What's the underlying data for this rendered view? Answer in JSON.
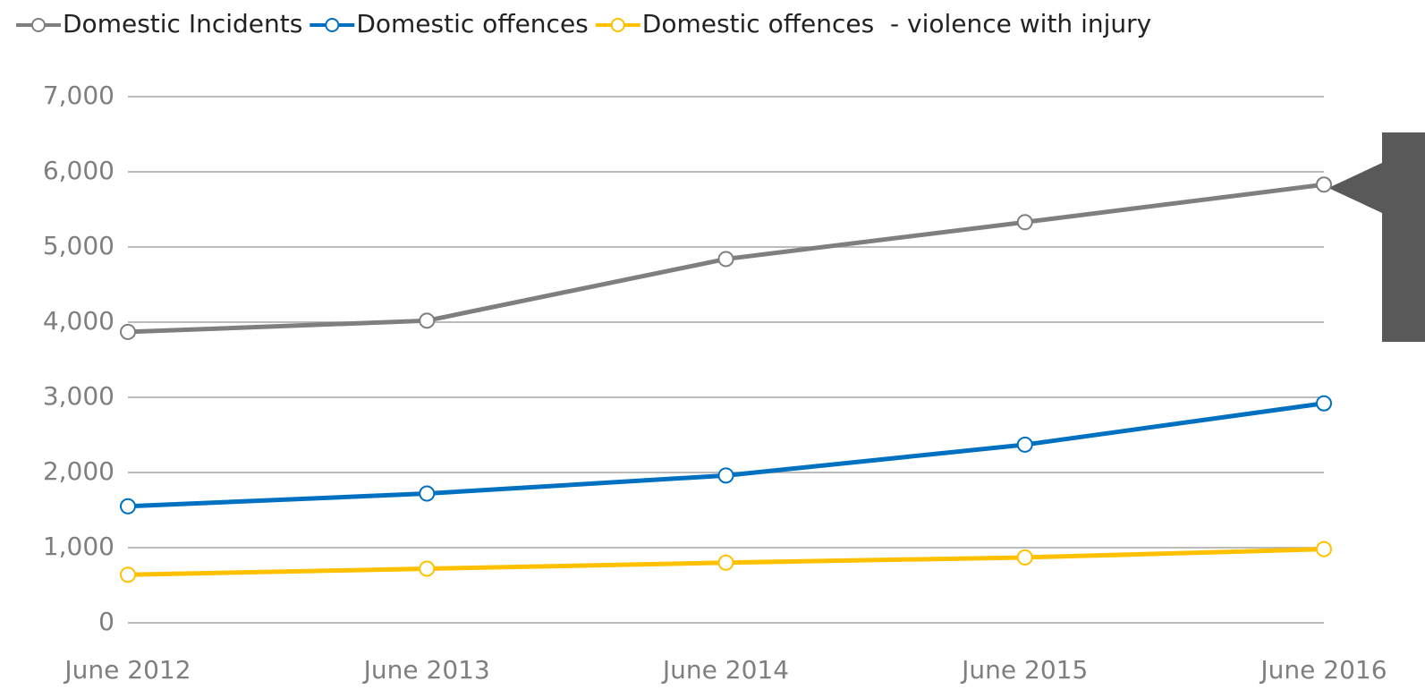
{
  "chart_data": {
    "type": "line",
    "x": [
      "June 2012",
      "June 2013",
      "June 2014",
      "June 2015",
      "June 2016"
    ],
    "series": [
      {
        "name": "Domestic Incidents",
        "color": "#7f7f7f",
        "values": [
          3870,
          4020,
          4840,
          5330,
          5830
        ]
      },
      {
        "name": "Domestic offences",
        "color": "#0070c0",
        "values": [
          1550,
          1720,
          1960,
          2370,
          2920
        ]
      },
      {
        "name": "Domestic offences  - violence with injury",
        "color": "#ffc000",
        "values": [
          640,
          720,
          800,
          870,
          980
        ]
      }
    ],
    "ylim": [
      0,
      7000
    ],
    "yticks": [
      0,
      {
        "value": 1000,
        "label": "1,000"
      },
      {
        "value": 2000,
        "label": "2,000"
      },
      {
        "value": 3000,
        "label": "3,000"
      },
      {
        "value": 4000,
        "label": "4,000"
      },
      {
        "value": 5000,
        "label": "5,000"
      },
      {
        "value": 6000,
        "label": "6,000"
      },
      {
        "value": 7000,
        "label": "7,000"
      }
    ],
    "grid": true,
    "legend": "top"
  }
}
